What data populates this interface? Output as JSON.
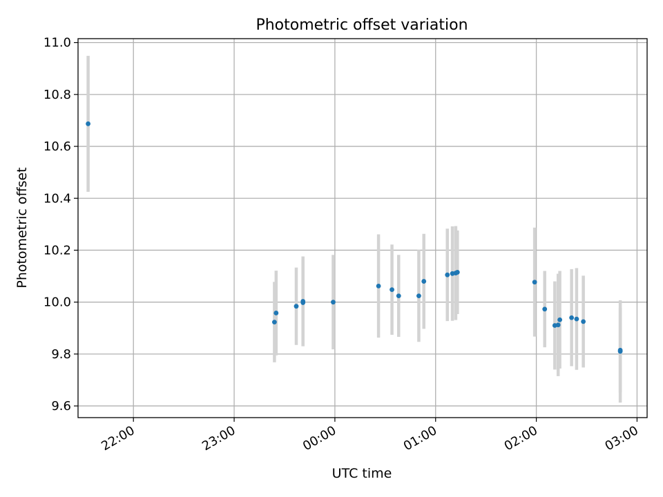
{
  "chart_data": {
    "type": "scatter",
    "title": "Photometric offset variation",
    "xlabel": "UTC time",
    "ylabel": "Photometric offset",
    "x_ticks": [
      "22:00",
      "23:00",
      "00:00",
      "01:00",
      "02:00",
      "03:00"
    ],
    "y_ticks": [
      "9.6",
      "9.8",
      "10.0",
      "10.2",
      "10.4",
      "10.6",
      "10.8",
      "11.0"
    ],
    "xlim": [
      "21:27",
      "03:06"
    ],
    "ylim": [
      9.555,
      11.015
    ],
    "grid": true,
    "errorbar_color": "#d3d3d3",
    "point_color": "#1f77b4",
    "series": [
      {
        "points": [
          {
            "x": "21:33",
            "y": 10.687,
            "err": 0.262
          },
          {
            "x": "23:24",
            "y": 9.923,
            "err": 0.155
          },
          {
            "x": "23:25",
            "y": 9.958,
            "err": 0.163
          },
          {
            "x": "23:37",
            "y": 9.984,
            "err": 0.149
          },
          {
            "x": "23:41",
            "y": 9.998,
            "err": 0.167
          },
          {
            "x": "23:41",
            "y": 10.003,
            "err": 0.173
          },
          {
            "x": "23:59",
            "y": 10.0,
            "err": 0.182
          },
          {
            "x": "00:26",
            "y": 10.062,
            "err": 0.199
          },
          {
            "x": "00:34",
            "y": 10.048,
            "err": 0.174
          },
          {
            "x": "00:38",
            "y": 10.024,
            "err": 0.158
          },
          {
            "x": "00:50",
            "y": 10.024,
            "err": 0.177
          },
          {
            "x": "00:53",
            "y": 10.08,
            "err": 0.183
          },
          {
            "x": "01:07",
            "y": 10.105,
            "err": 0.178
          },
          {
            "x": "01:10",
            "y": 10.11,
            "err": 0.182
          },
          {
            "x": "01:12",
            "y": 10.112,
            "err": 0.181
          },
          {
            "x": "01:13",
            "y": 10.115,
            "err": 0.161
          },
          {
            "x": "01:59",
            "y": 10.077,
            "err": 0.21
          },
          {
            "x": "02:05",
            "y": 9.973,
            "err": 0.147
          },
          {
            "x": "02:11",
            "y": 9.91,
            "err": 0.17
          },
          {
            "x": "02:13",
            "y": 9.912,
            "err": 0.197
          },
          {
            "x": "02:14",
            "y": 9.932,
            "err": 0.188
          },
          {
            "x": "02:21",
            "y": 9.94,
            "err": 0.187
          },
          {
            "x": "02:24",
            "y": 9.935,
            "err": 0.196
          },
          {
            "x": "02:28",
            "y": 9.925,
            "err": 0.177
          },
          {
            "x": "02:50",
            "y": 9.81,
            "err": 0.197
          },
          {
            "x": "02:50",
            "y": 9.815,
            "err": 0.163
          }
        ]
      }
    ]
  }
}
